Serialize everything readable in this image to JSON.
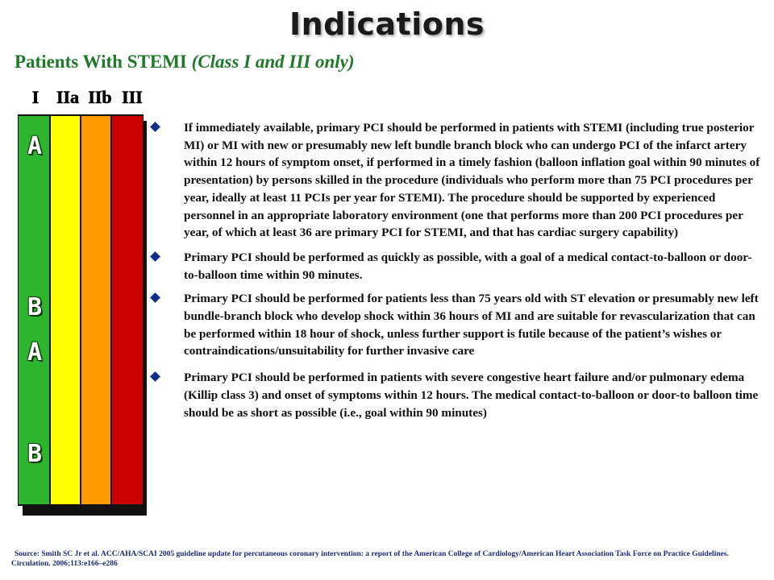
{
  "title": "Indications",
  "subtitle": {
    "main": "Patients With STEMI",
    "paren": "(Class I and III only)"
  },
  "class_labels": [
    "I",
    "IIa",
    "IIb",
    "III"
  ],
  "level_letters": [
    "A",
    "B",
    "A",
    "B"
  ],
  "colors": {
    "class_I": "#2db52d",
    "class_IIa": "#ffff00",
    "class_IIb": "#ff9900",
    "class_III": "#cc0000",
    "subtitle": "#1e7a28",
    "bullet": "#0d2f8a"
  },
  "bullets": [
    "If immediately available, primary PCI should be performed in patients with STEMI (including true posterior MI) or MI with new or presumably new left bundle branch block who can undergo PCI of the infarct artery within 12 hours of symptom onset, if performed in a timely fashion (balloon inflation goal within 90 minutes of presentation) by persons skilled in the procedure (individuals who perform more than 75 PCI procedures per year, ideally at least 11 PCIs per year for STEMI). The procedure should be supported by experienced personnel in an appropriate laboratory environment (one that performs more than 200 PCI procedures per year, of which at least 36 are primary PCI for STEMI, and that has cardiac surgery capability)",
    "Primary PCI should be performed as quickly as possible, with a goal of a medical contact-to-balloon or door-to-balloon time within 90 minutes.",
    "Primary PCI should be performed for patients less than 75 years old with ST elevation or presumably new left bundle-branch block who develop shock within 36 hours of MI and are suitable for revascularization that can be performed within 18 hour of shock, unless further support is futile because of the patient’s wishes or contraindications/unsuitability for further invasive care",
    "Primary PCI should be performed in patients with severe congestive heart failure and/or pulmonary edema (Killip class 3) and onset of symptoms within 12 hours. The medical contact-to-balloon or door-to balloon time should be as short as possible (i.e., goal within 90 minutes)"
  ],
  "source": "Source: Smith SC Jr et al. ACC/AHA/SCAI 2005 guideline update for percutaneous coronary intervention: a report of the American College of Cardiology/American Heart Association Task Force on Practice Guidelines. Circulation. 2006;113:e166–e286"
}
